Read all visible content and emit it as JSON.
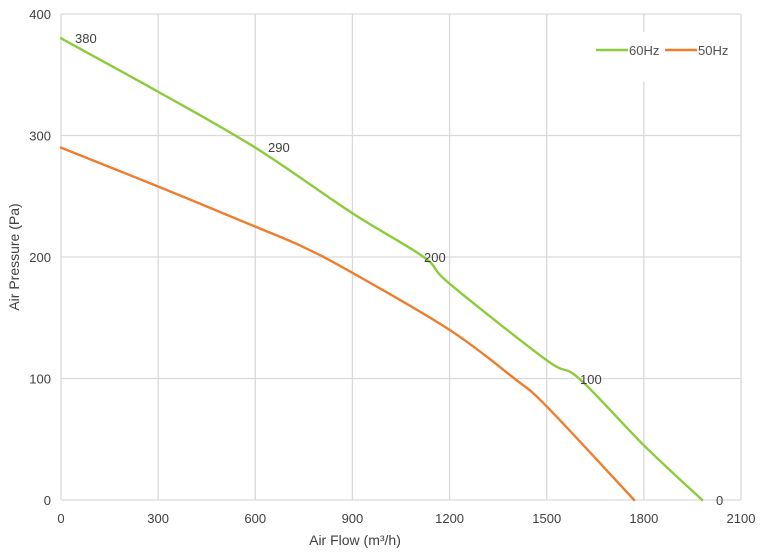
{
  "chart_data": {
    "type": "line",
    "title": "",
    "xlabel": "Air Flow  (m³/h)",
    "ylabel": "Air Pressure  (Pa)",
    "xlim": [
      0,
      2100
    ],
    "ylim": [
      0,
      400
    ],
    "x_ticks": [
      "0",
      "300",
      "600",
      "900",
      "1200",
      "1500",
      "1800",
      "2100"
    ],
    "y_ticks": [
      "0",
      "100",
      "200",
      "300",
      "400"
    ],
    "grid": true,
    "legend_position": "top-right",
    "series": [
      {
        "name": "60Hz",
        "color": "#8CCB3C",
        "points": [
          [
            0,
            380
          ],
          [
            300,
            336
          ],
          [
            600,
            290
          ],
          [
            900,
            236
          ],
          [
            1120,
            200
          ],
          [
            1200,
            178
          ],
          [
            1500,
            115
          ],
          [
            1600,
            100
          ],
          [
            1800,
            45
          ],
          [
            1980,
            0
          ]
        ],
        "annotations": [
          {
            "x": 0,
            "y": 380,
            "label": "380"
          },
          {
            "x": 600,
            "y": 290,
            "label": "290"
          },
          {
            "x": 1120,
            "y": 200,
            "label": "200"
          },
          {
            "x": 1600,
            "y": 100,
            "label": "100"
          },
          {
            "x": 1980,
            "y": 0,
            "label": "0"
          }
        ]
      },
      {
        "name": "50Hz",
        "color": "#EE7D2D",
        "points": [
          [
            0,
            290
          ],
          [
            300,
            258
          ],
          [
            600,
            225
          ],
          [
            750,
            208
          ],
          [
            900,
            187
          ],
          [
            1200,
            140
          ],
          [
            1400,
            100
          ],
          [
            1500,
            77
          ],
          [
            1770,
            0
          ]
        ]
      }
    ]
  },
  "axes": {
    "x_title": "Air Flow  (m³/h)",
    "y_title": "Air Pressure  (Pa)"
  },
  "legend": [
    {
      "label": "60Hz",
      "color": "#8CCB3C"
    },
    {
      "label": "50Hz",
      "color": "#EE7D2D"
    }
  ]
}
